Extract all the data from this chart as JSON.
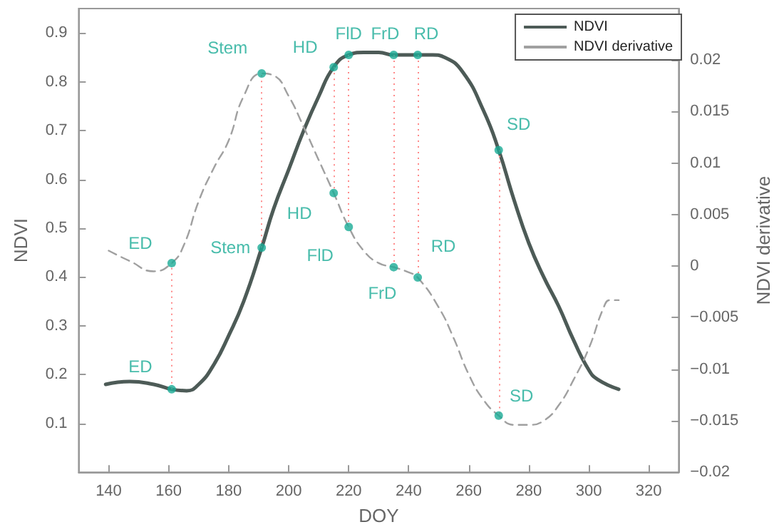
{
  "chart_data": {
    "type": "line",
    "xlabel": "DOY",
    "ylabel": "NDVI",
    "y2label": "NDVI derivative",
    "xlim": [
      130,
      330
    ],
    "xticks": [
      140,
      160,
      180,
      200,
      220,
      240,
      260,
      280,
      300,
      320
    ],
    "ylim": [
      0,
      0.95
    ],
    "yticks": [
      {
        "value": 0,
        "label": null
      },
      0.1,
      0.2,
      0.3,
      0.4,
      0.5,
      0.6,
      0.7,
      0.8,
      0.9
    ],
    "y2lim": [
      -0.02,
      0.025
    ],
    "y2ticks": [
      {
        "value": -0.02,
        "label": "−0.02"
      },
      {
        "value": -0.015,
        "label": "−0.015"
      },
      {
        "value": -0.01,
        "label": "−0.01"
      },
      {
        "value": -0.005,
        "label": "−0.005"
      },
      0,
      0.005,
      0.01,
      0.015,
      0.02
    ],
    "grid": false,
    "legend": "top right",
    "series": [
      {
        "name": "NDVI",
        "color": "#4d5b57",
        "line_style": "solid",
        "marker": "none",
        "x": [
          139,
          147,
          155,
          161,
          166,
          170,
          175,
          180,
          185,
          191,
          195,
          200,
          205,
          210,
          215,
          220,
          225,
          230,
          235,
          243,
          248,
          252,
          258,
          265,
          270,
          275,
          280,
          285,
          290,
          295,
          300,
          303,
          310
        ],
        "values": [
          0.18,
          0.186,
          0.18,
          0.17,
          0.167,
          0.18,
          0.22,
          0.28,
          0.35,
          0.46,
          0.54,
          0.62,
          0.7,
          0.77,
          0.83,
          0.855,
          0.86,
          0.86,
          0.855,
          0.855,
          0.855,
          0.85,
          0.82,
          0.74,
          0.66,
          0.56,
          0.47,
          0.4,
          0.34,
          0.27,
          0.21,
          0.19,
          0.17
        ]
      },
      {
        "name": "NDVI derivative",
        "axis": "y2",
        "color": "#a0a0a0",
        "line_style": "dashed",
        "marker": "none",
        "x": [
          140,
          147,
          155,
          161,
          165,
          170,
          175,
          180,
          185,
          191,
          195,
          200,
          205,
          210,
          215,
          220,
          225,
          230,
          235,
          240,
          243,
          250,
          255,
          260,
          265,
          270,
          275,
          280,
          285,
          290,
          295,
          300,
          305,
          307,
          310
        ],
        "values": [
          0.0015,
          0.0005,
          -0.0005,
          0.0003,
          0.002,
          0.0063,
          0.0095,
          0.0122,
          0.0165,
          0.0187,
          0.0185,
          0.0165,
          0.0135,
          0.0103,
          0.0071,
          0.0038,
          0.0015,
          0.0003,
          -0.0001,
          -0.0006,
          -0.0011,
          -0.004,
          -0.007,
          -0.0105,
          -0.013,
          -0.0145,
          -0.0154,
          -0.0154,
          -0.015,
          -0.0135,
          -0.011,
          -0.008,
          -0.004,
          -0.0033,
          -0.0033
        ]
      },
      {
        "type": "scatter",
        "color": "#1aab96",
        "marker": "circle",
        "x": [
          161,
          191,
          215,
          220,
          235,
          243,
          270
        ],
        "values": [
          0.17,
          0.46,
          0.83,
          0.855,
          0.855,
          0.855,
          0.66
        ],
        "value_labels": [
          "ED",
          "Stem",
          "HD",
          "FlD",
          "FrD",
          "RD",
          "SD"
        ]
      },
      {
        "type": "scatter",
        "axis": "y2",
        "color": "#1aab96",
        "marker": "circle",
        "x": [
          161,
          191,
          215,
          220,
          235,
          243,
          270
        ],
        "values": [
          0.0003,
          0.0187,
          0.0071,
          0.0038,
          -0.0001,
          -0.0011,
          -0.0145
        ],
        "value_labels": [
          "ED",
          "Stem",
          "HD",
          "FlD",
          "FrD",
          "RD",
          "SD"
        ]
      }
    ],
    "ref_lines": [
      {
        "axis": "x",
        "value": 161,
        "label": null,
        "color": "#ff8a8a",
        "line_style": "dotted"
      },
      {
        "axis": "x",
        "value": 191,
        "label": null,
        "color": "#ff8a8a",
        "line_style": "dotted"
      },
      {
        "axis": "x",
        "value": 215,
        "label": null,
        "color": "#ff8a8a",
        "line_style": "dotted"
      },
      {
        "axis": "x",
        "value": 220,
        "label": null,
        "color": "#ff8a8a",
        "line_style": "dotted"
      },
      {
        "axis": "x",
        "value": 235,
        "label": null,
        "color": "#ff8a8a",
        "line_style": "dotted"
      },
      {
        "axis": "x",
        "value": 243,
        "label": null,
        "color": "#ff8a8a",
        "line_style": "dotted"
      },
      {
        "axis": "x",
        "value": 270,
        "label": null,
        "color": "#ff8a8a",
        "line_style": "dotted"
      }
    ]
  }
}
